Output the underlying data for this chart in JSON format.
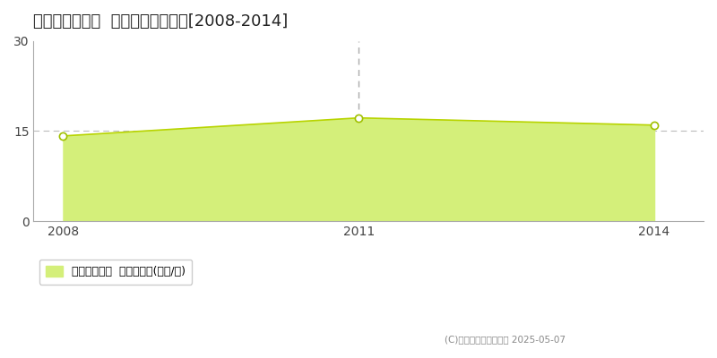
{
  "title": "北見市無加川町  収益物件価格推移[2008-2014]",
  "years": [
    2008,
    2011,
    2014
  ],
  "values": [
    14.2,
    17.2,
    16.0
  ],
  "fill_color": "#d4ef7a",
  "line_color": "#b8d400",
  "marker_color": "#ffffff",
  "marker_edge_color": "#a0c000",
  "ylim": [
    0,
    30
  ],
  "yticks": [
    0,
    15,
    30
  ],
  "xticks": [
    2008,
    2011,
    2014
  ],
  "grid_h_y": 15,
  "grid_color": "#bbbbbb",
  "dashed_line_x": 2011,
  "dashed_line_color": "#aaaaaa",
  "legend_label": "収益物件価格  平均嵪単価(万円/嵪)",
  "copyright_text": "(C)土地価格ドットコム 2025-05-07",
  "bg_color": "#ffffff",
  "plot_bg_color": "#ffffff",
  "title_fontsize": 13,
  "axis_fontsize": 10,
  "legend_fontsize": 9,
  "spine_color": "#aaaaaa"
}
